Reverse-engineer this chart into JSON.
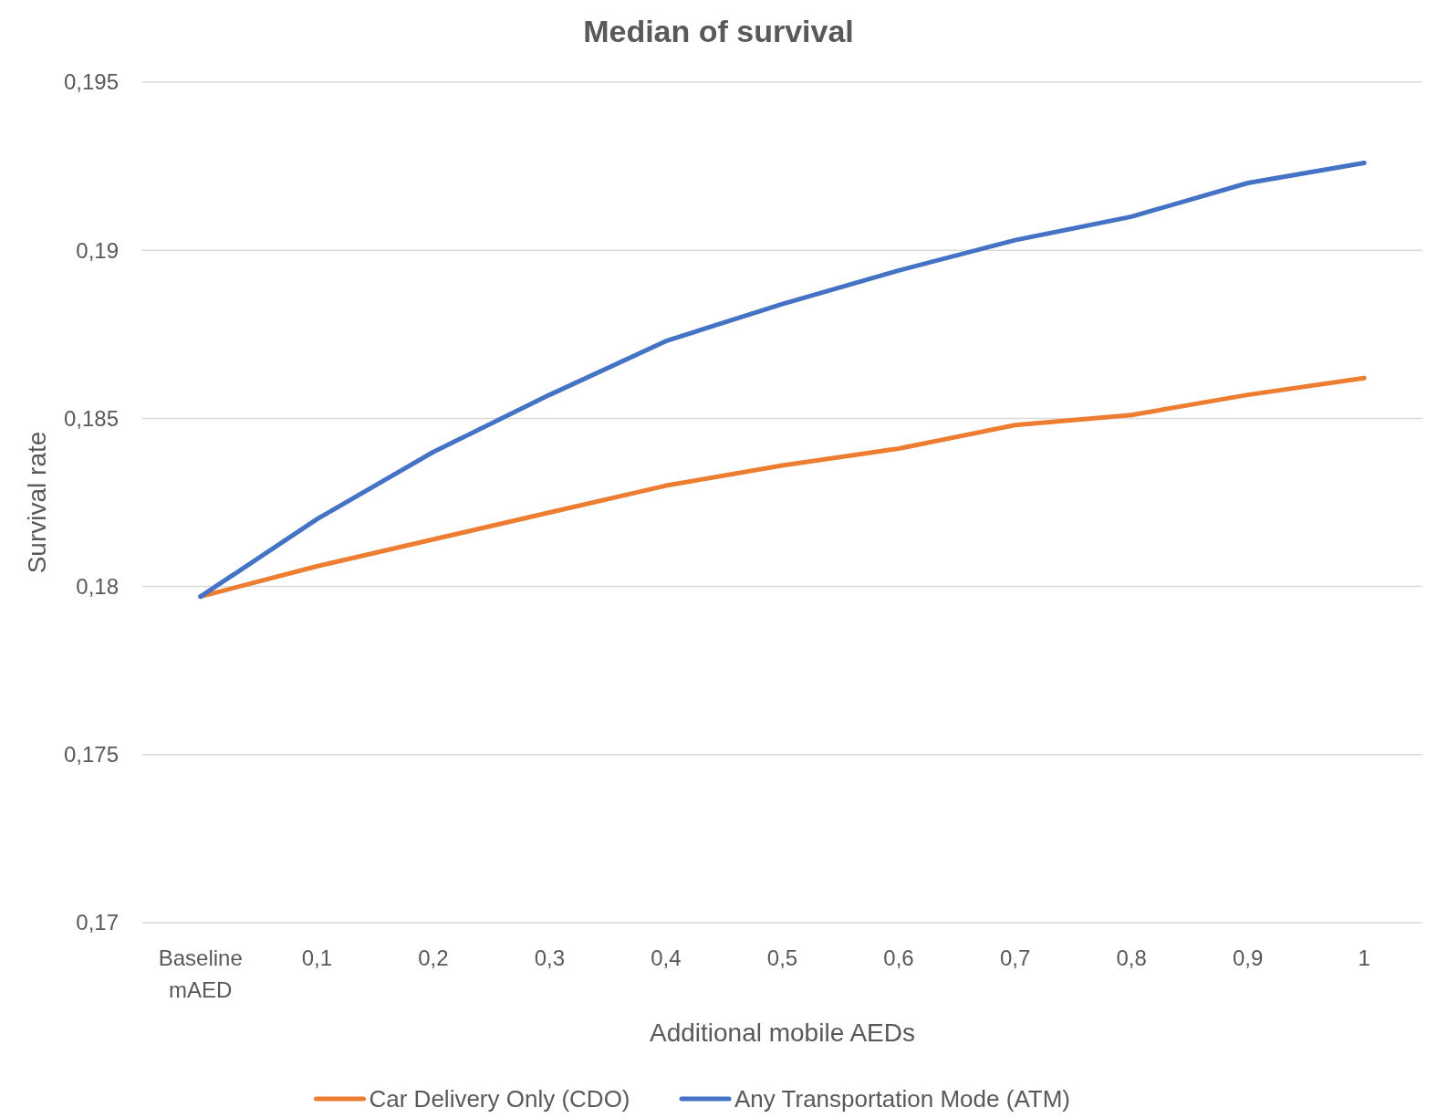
{
  "chart_data": {
    "type": "line",
    "title": "Median of survival",
    "xlabel": "Additional mobile AEDs",
    "ylabel": "Survival rate",
    "categories": [
      "Baseline mAED",
      "0,1",
      "0,2",
      "0,3",
      "0,4",
      "0,5",
      "0,6",
      "0,7",
      "0,8",
      "0,9",
      "1"
    ],
    "series": [
      {
        "name": "Car Delivery Only (CDO)",
        "color": "#ed7d31",
        "values": [
          0.1797,
          0.1806,
          0.1814,
          0.1822,
          0.183,
          0.1836,
          0.1841,
          0.1848,
          0.1851,
          0.1857,
          0.1862
        ]
      },
      {
        "name": "Any Transportation Mode (ATM)",
        "color": "#4472c4",
        "values": [
          0.1797,
          0.182,
          0.184,
          0.1857,
          0.1873,
          0.1884,
          0.1894,
          0.1903,
          0.191,
          0.192,
          0.1926
        ]
      }
    ],
    "ylim": [
      0.17,
      0.195
    ],
    "yticks": [
      {
        "value": 0.17,
        "label": "0,17"
      },
      {
        "value": 0.175,
        "label": "0,175"
      },
      {
        "value": 0.18,
        "label": "0,18"
      },
      {
        "value": 0.185,
        "label": "0,185"
      },
      {
        "value": 0.19,
        "label": "0,19"
      },
      {
        "value": 0.195,
        "label": "0,195"
      }
    ],
    "grid": "y",
    "legend": "bottom",
    "marker": "none",
    "line_style": "solid"
  }
}
